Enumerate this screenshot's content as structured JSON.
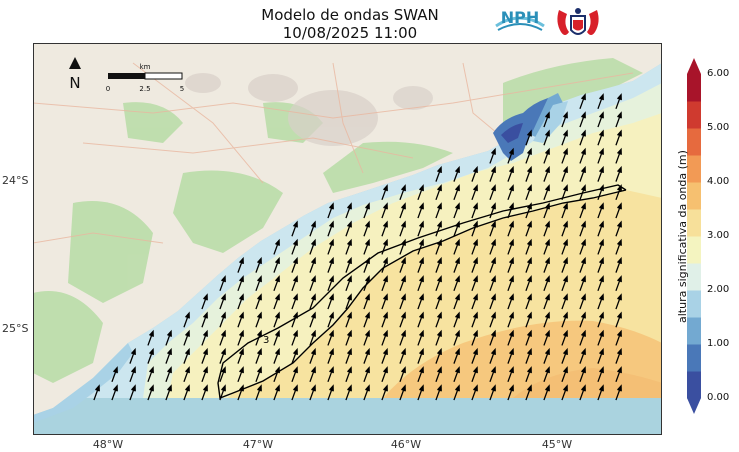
{
  "title": "Modelo de ondas SWAN",
  "datetime": "10/08/2025 11:00",
  "logos": [
    {
      "name": "nph-logo",
      "text": "NPH",
      "color": "#2a8fb8"
    },
    {
      "name": "seahorse-emblem-logo",
      "text": "",
      "color": "#d8202a"
    }
  ],
  "map": {
    "north_label": "N",
    "scalebar": {
      "unit": "km",
      "ticks": [
        "0",
        "2.5",
        "5"
      ]
    },
    "contour_label": "3",
    "x_ticks": [
      "48°W",
      "47°W",
      "46°W",
      "45°W"
    ],
    "y_ticks": [
      "24°S",
      "25°S"
    ]
  },
  "colorbar": {
    "title": "altura significativa da onda (m)",
    "labels": [
      "0.00",
      "1.00",
      "2.00",
      "3.00",
      "4.00",
      "5.00",
      "6.00"
    ],
    "colors": [
      "#3a4fa0",
      "#4a78b8",
      "#73a9d1",
      "#a9d2e6",
      "#e0f0e8",
      "#f4f4c0",
      "#f7e09a",
      "#f6c070",
      "#f29a55",
      "#e66a3e",
      "#cf3a2f",
      "#a8142a"
    ]
  }
}
